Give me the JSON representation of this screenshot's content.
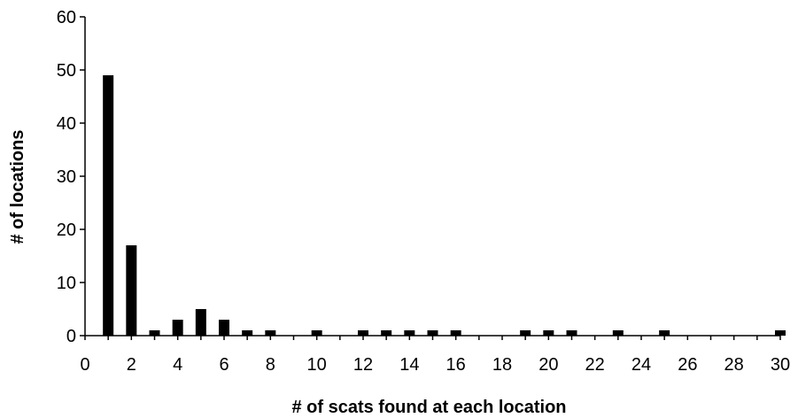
{
  "chart_data": {
    "type": "bar",
    "title": "",
    "xlabel": "# of scats found at each location",
    "ylabel": "# of locations",
    "xlim": [
      0,
      30
    ],
    "ylim": [
      0,
      60
    ],
    "x_ticks": [
      0,
      2,
      4,
      6,
      8,
      10,
      12,
      14,
      16,
      18,
      20,
      22,
      24,
      26,
      28,
      30
    ],
    "y_ticks": [
      0,
      10,
      20,
      30,
      40,
      50,
      60
    ],
    "grid": false,
    "legend": "none",
    "bar_color": "#000000",
    "points": [
      {
        "x": 1,
        "y": 49
      },
      {
        "x": 2,
        "y": 17
      },
      {
        "x": 3,
        "y": 1
      },
      {
        "x": 4,
        "y": 3
      },
      {
        "x": 5,
        "y": 5
      },
      {
        "x": 6,
        "y": 3
      },
      {
        "x": 7,
        "y": 1
      },
      {
        "x": 8,
        "y": 1
      },
      {
        "x": 10,
        "y": 1
      },
      {
        "x": 12,
        "y": 1
      },
      {
        "x": 13,
        "y": 1
      },
      {
        "x": 14,
        "y": 1
      },
      {
        "x": 15,
        "y": 1
      },
      {
        "x": 16,
        "y": 1
      },
      {
        "x": 19,
        "y": 1
      },
      {
        "x": 20,
        "y": 1
      },
      {
        "x": 21,
        "y": 1
      },
      {
        "x": 23,
        "y": 1
      },
      {
        "x": 25,
        "y": 1
      },
      {
        "x": 30,
        "y": 1
      }
    ]
  }
}
